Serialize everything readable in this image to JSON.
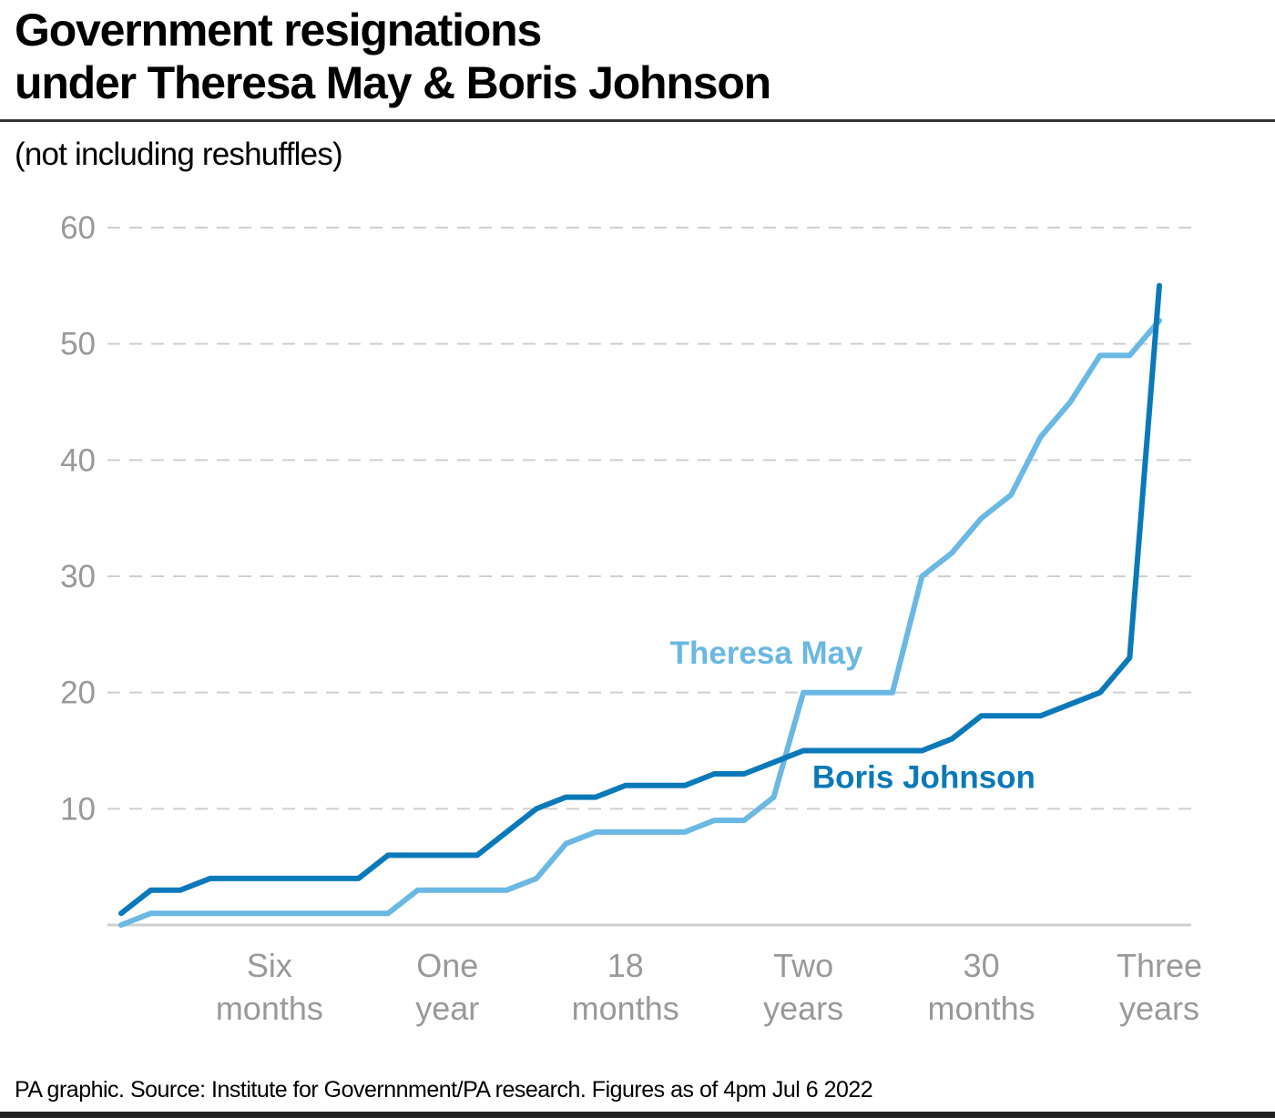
{
  "header": {
    "title_line1": "Government resignations",
    "title_line2": "under Theresa May & Boris Johnson",
    "subtitle": "(not including reshuffles)"
  },
  "footer": {
    "source": "PA graphic. Source: Institute for Governnment/PA research. Figures as of 4pm Jul 6 2022"
  },
  "chart_data": {
    "type": "line",
    "title": "Government resignations under Theresa May & Boris Johnson",
    "subtitle": "(not including reshuffles)",
    "xlabel": "",
    "ylabel": "",
    "ylim": [
      0,
      60
    ],
    "xlim": [
      0,
      35
    ],
    "x_unit": "months in office",
    "yticks": [
      10,
      20,
      30,
      40,
      50,
      60
    ],
    "xticks": [
      {
        "month": 5,
        "line1": "Six",
        "line2": "months"
      },
      {
        "month": 11,
        "line1": "One",
        "line2": "year"
      },
      {
        "month": 17,
        "line1": "18",
        "line2": "months"
      },
      {
        "month": 23,
        "line1": "Two",
        "line2": "years"
      },
      {
        "month": 29,
        "line1": "30",
        "line2": "months"
      },
      {
        "month": 35,
        "line1": "Three",
        "line2": "years"
      }
    ],
    "grid": "horizontal-dashed",
    "legend": "inline-labels",
    "series": [
      {
        "name": "Theresa May",
        "color": "#6ab8e3",
        "label_at": {
          "month": 18.5,
          "value": 22.5
        },
        "values": [
          0,
          1,
          1,
          1,
          1,
          1,
          1,
          1,
          1,
          1,
          3,
          3,
          3,
          3,
          4,
          7,
          8,
          8,
          8,
          8,
          9,
          9,
          11,
          20,
          20,
          20,
          20,
          30,
          32,
          35,
          37,
          42,
          45,
          49,
          49,
          52
        ]
      },
      {
        "name": "Boris Johnson",
        "color": "#0a79b9",
        "label_at": {
          "month": 23.3,
          "value": 11.8
        },
        "values": [
          1,
          3,
          3,
          4,
          4,
          4,
          4,
          4,
          4,
          6,
          6,
          6,
          6,
          8,
          10,
          11,
          11,
          12,
          12,
          12,
          13,
          13,
          14,
          15,
          15,
          15,
          15,
          15,
          16,
          18,
          18,
          18,
          19,
          20,
          23,
          55
        ]
      }
    ]
  }
}
